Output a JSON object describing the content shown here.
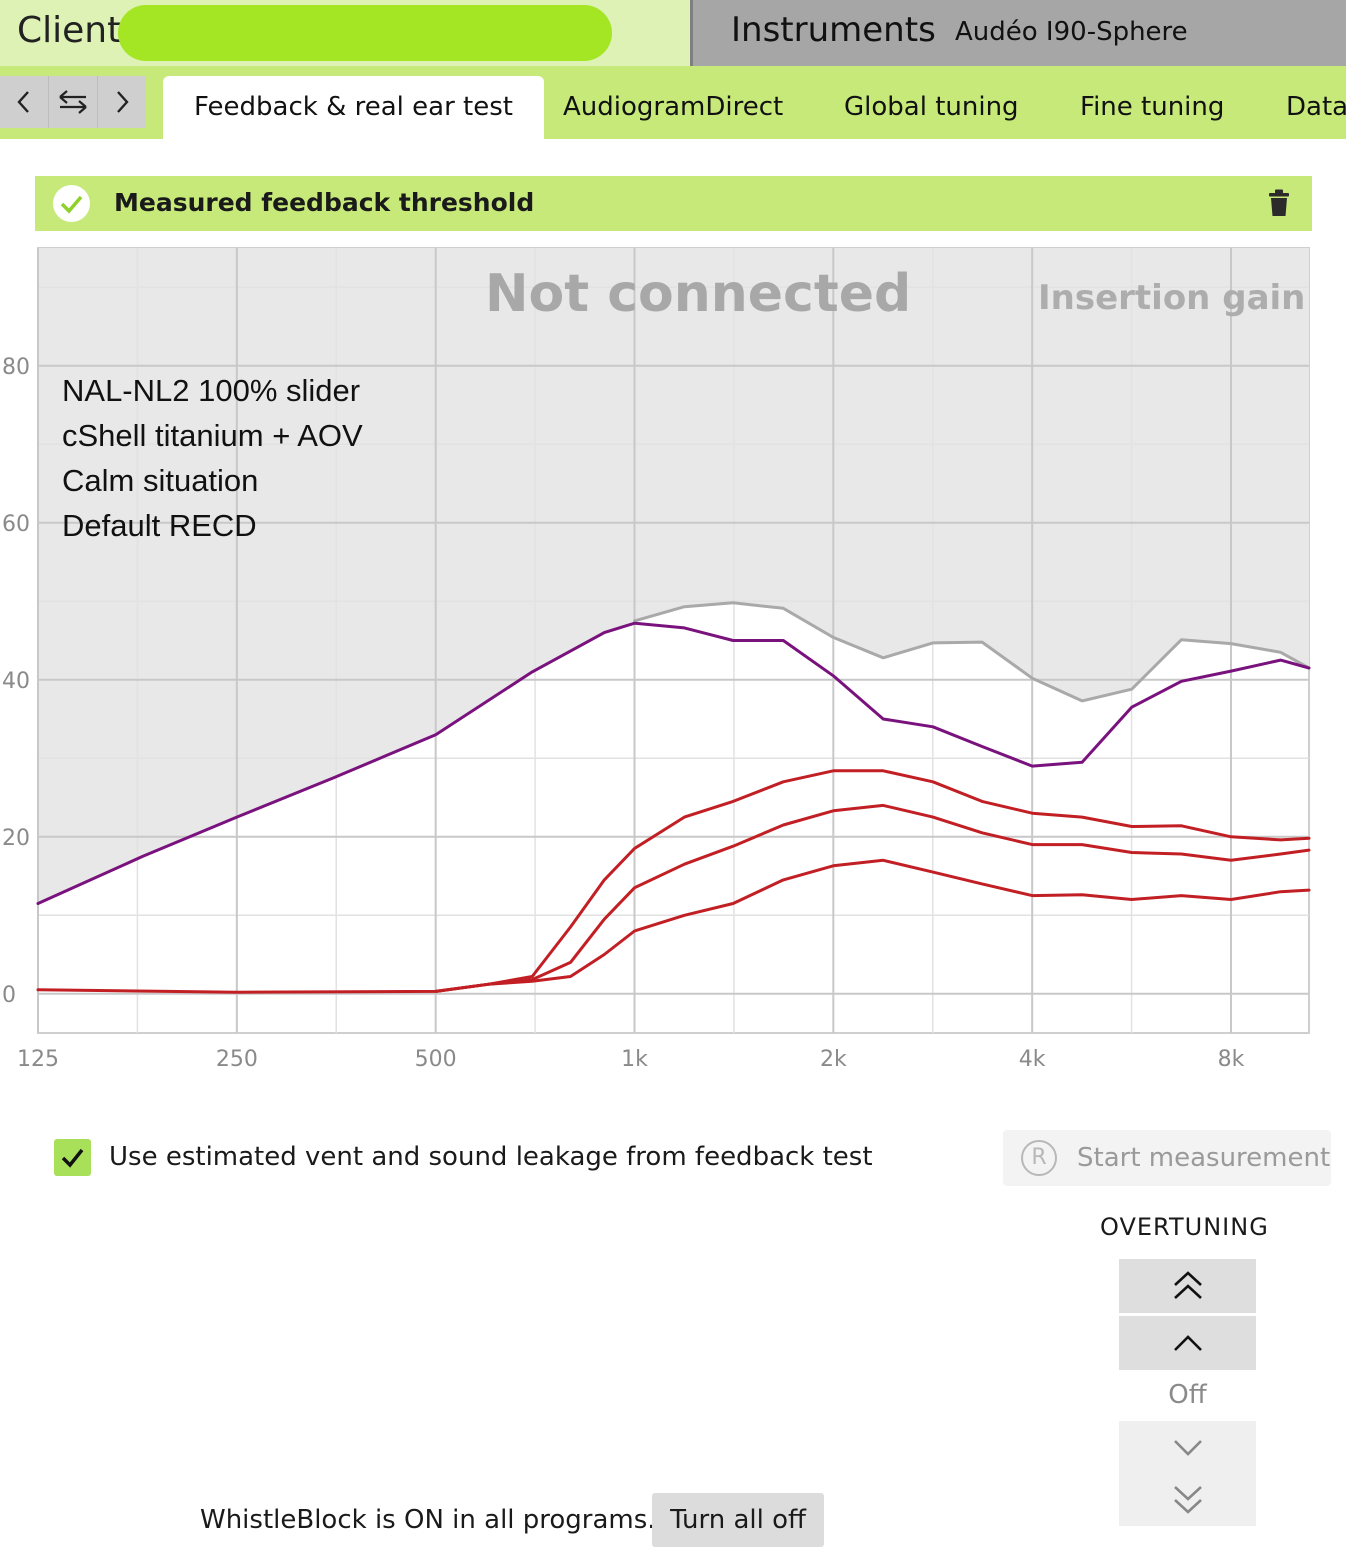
{
  "header": {
    "client_label": "Client",
    "instruments_label": "Instruments",
    "instrument_model": "Audéo I90-Sphere"
  },
  "nav": {
    "back_icon": "chevron-left-icon",
    "swap_icon": "swap-arrows-icon",
    "forward_icon": "chevron-right-icon",
    "tabs": [
      {
        "label": "Feedback & real ear test",
        "active": true
      },
      {
        "label": "AudiogramDirect",
        "active": false
      },
      {
        "label": "Global tuning",
        "active": false
      },
      {
        "label": "Fine tuning",
        "active": false
      },
      {
        "label": "Data",
        "active": false
      }
    ]
  },
  "section": {
    "title": "Measured feedback threshold",
    "status_icon": "check-circle-icon",
    "delete_icon": "trash-icon"
  },
  "chart": {
    "status_text": "Not connected",
    "mode_text": "Insertion gain",
    "notes": [
      "NAL-NL2 100% slider",
      "cShell titanium + AOV",
      "Calm situation",
      "Default RECD"
    ]
  },
  "chart_data": {
    "type": "line",
    "x_scale": "log",
    "x_ticks": [
      "125",
      "250",
      "500",
      "1k",
      "2k",
      "4k",
      "8k"
    ],
    "xlim": [
      125,
      10500
    ],
    "y_ticks": [
      "0",
      "20",
      "40",
      "60",
      "80"
    ],
    "ylim": [
      -5,
      95
    ],
    "grid": true,
    "colors": {
      "feedback": "#7a127e",
      "reference": "#a9a9a9",
      "gain": "#c21f24",
      "shaded": "#e8e8e8"
    },
    "series": [
      {
        "role": "reference",
        "x": [
          1000,
          1190,
          1410,
          1680,
          2000,
          2380,
          2830,
          3360,
          4000,
          4760,
          5660,
          6730,
          8000,
          9510,
          10500
        ],
        "y": [
          47.5,
          49.3,
          49.8,
          49.1,
          45.4,
          42.8,
          44.7,
          44.8,
          40.2,
          37.3,
          38.8,
          45.1,
          44.6,
          43.5,
          41.5
        ]
      },
      {
        "role": "feedback",
        "x": [
          125,
          180,
          250,
          350,
          500,
          700,
          900,
          1000,
          1190,
          1410,
          1680,
          2000,
          2380,
          2830,
          3360,
          4000,
          4760,
          5660,
          6730,
          8000,
          9510,
          10500
        ],
        "y": [
          11.5,
          17.5,
          22.5,
          27.5,
          33,
          41,
          46,
          47.2,
          46.6,
          45,
          45,
          40.5,
          35,
          34,
          31.5,
          29,
          29.5,
          36.5,
          39.8,
          41.1,
          42.5,
          41.5
        ]
      },
      {
        "role": "gain",
        "x": [
          125,
          250,
          500,
          600,
          700,
          800,
          900,
          1000,
          1190,
          1410,
          1680,
          2000,
          2380,
          2830,
          3360,
          4000,
          4760,
          5660,
          6730,
          8000,
          9510,
          10500
        ],
        "y": [
          0.5,
          0.2,
          0.3,
          1.2,
          2.2,
          8.5,
          14.5,
          18.5,
          22.5,
          24.5,
          27,
          28.4,
          28.4,
          27,
          24.5,
          23,
          22.5,
          21.3,
          21.4,
          20,
          19.6,
          19.8
        ]
      },
      {
        "role": "gain",
        "x": [
          500,
          600,
          700,
          800,
          900,
          1000,
          1190,
          1410,
          1680,
          2000,
          2380,
          2830,
          3360,
          4000,
          4760,
          5660,
          6730,
          8000,
          9510,
          10500
        ],
        "y": [
          0.3,
          1.2,
          1.8,
          4,
          9.5,
          13.5,
          16.5,
          18.8,
          21.5,
          23.3,
          24,
          22.5,
          20.5,
          19,
          19,
          18,
          17.8,
          17,
          17.8,
          18.3
        ]
      },
      {
        "role": "gain",
        "x": [
          500,
          600,
          700,
          800,
          900,
          1000,
          1190,
          1410,
          1680,
          2000,
          2380,
          2830,
          3360,
          4000,
          4760,
          5660,
          6730,
          8000,
          9510,
          10500
        ],
        "y": [
          0.3,
          1.2,
          1.6,
          2.2,
          5,
          8,
          10,
          11.5,
          14.5,
          16.3,
          17,
          15.5,
          14,
          12.5,
          12.6,
          12,
          12.5,
          12,
          13,
          13.2
        ]
      }
    ]
  },
  "options": {
    "vent_checkbox_checked": true,
    "vent_checkbox_label": "Use estimated vent and sound leakage from feedback test",
    "start_measurement_label": "Start measurement",
    "start_icon": "r-circle-icon"
  },
  "overtuning": {
    "title": "OVERTUNING",
    "state": "Off",
    "buttons": [
      "double-chevron-up-icon",
      "chevron-up-icon",
      "chevron-down-icon",
      "double-chevron-down-icon"
    ]
  },
  "whistleblock": {
    "status_text": "WhistleBlock is ON in all programs.",
    "button_label": "Turn all off"
  }
}
